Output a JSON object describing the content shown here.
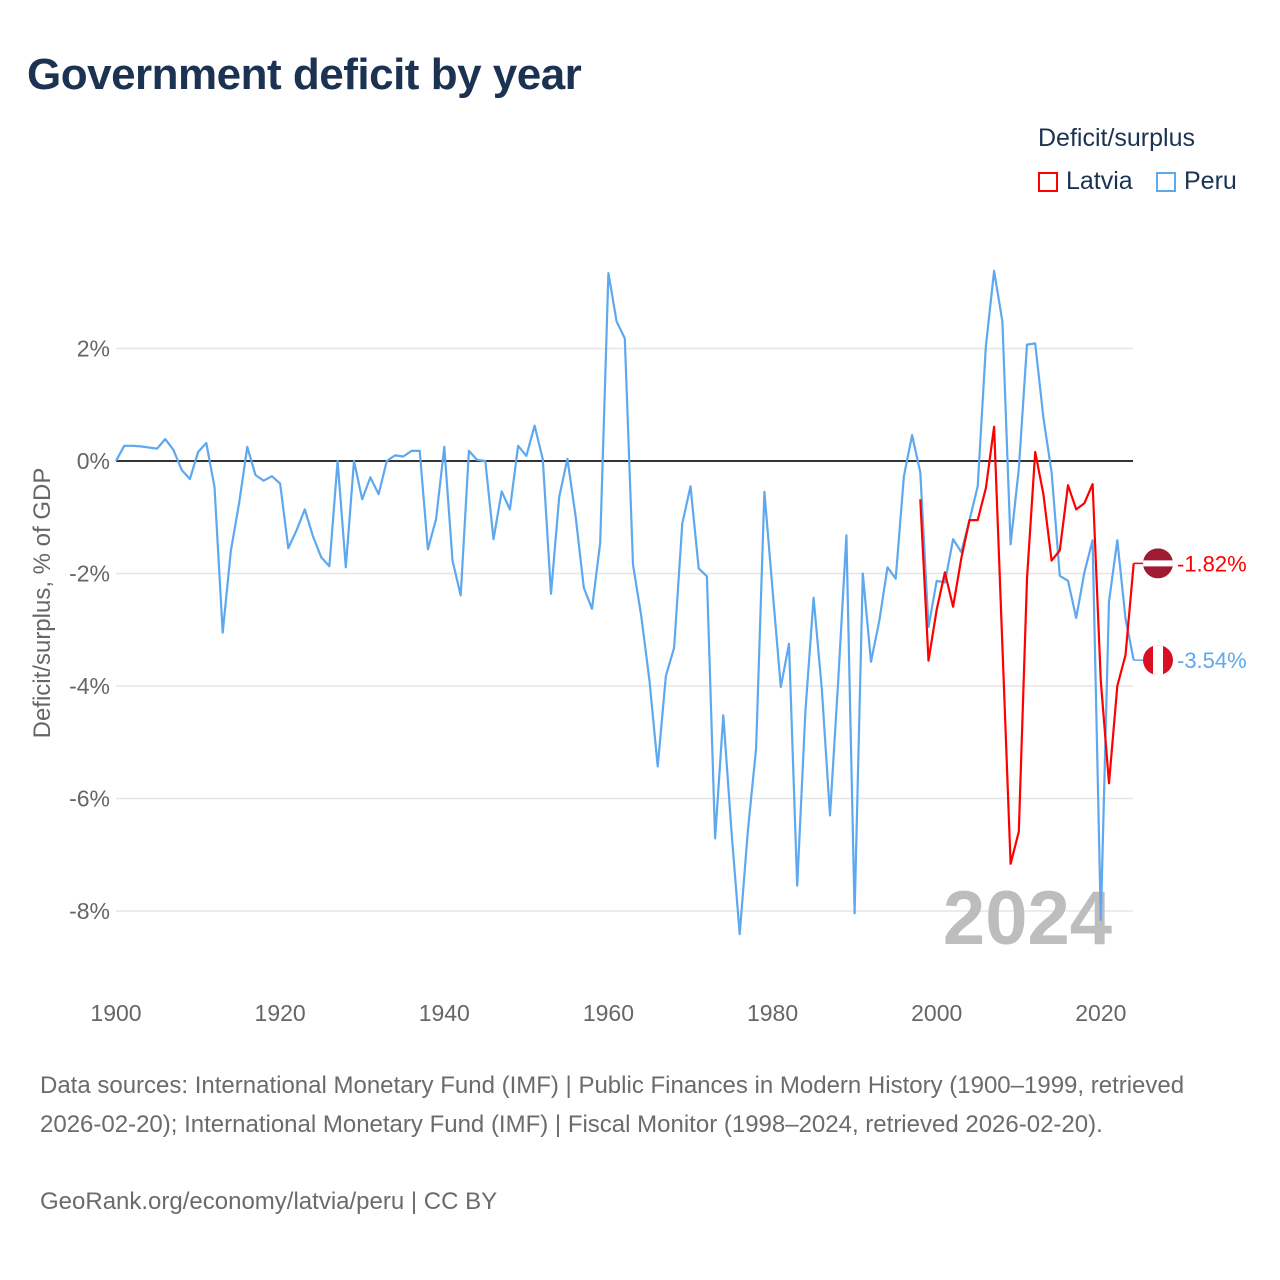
{
  "title": "Government deficit by year",
  "legend": {
    "title": "Deficit/surplus",
    "items": [
      {
        "label": "Latvia",
        "color": "#ff0000"
      },
      {
        "label": "Peru",
        "color": "#5da8ef"
      }
    ]
  },
  "chart_data": {
    "type": "line",
    "title": "Government deficit by year",
    "xlabel": "",
    "ylabel": "Deficit/surplus, % of GDP",
    "xlim": [
      1900,
      2024
    ],
    "ylim": [
      -9.3,
      3.5
    ],
    "x_ticks": [
      1900,
      1920,
      1940,
      1960,
      1980,
      2000,
      2020
    ],
    "x_tick_labels": [
      "1900",
      "1920",
      "1940",
      "1960",
      "1980",
      "2000",
      "2020"
    ],
    "y_ticks": [
      2,
      0,
      -2,
      -4,
      -6,
      -8
    ],
    "y_tick_labels": [
      "2%",
      "0%",
      "-2%",
      "-4%",
      "-6%",
      "-8%"
    ],
    "grid": true,
    "legend_position": "top-right",
    "year_watermark": "2024",
    "series": [
      {
        "name": "Peru",
        "color": "#5da8ef",
        "start_year": 1900,
        "end_label": "-3.54%",
        "values": [
          0,
          0.27,
          0.27,
          0.26,
          0.24,
          0.22,
          0.39,
          0.2,
          -0.16,
          -0.32,
          0.16,
          0.32,
          -0.46,
          -3.05,
          -1.59,
          -0.75,
          0.25,
          -0.25,
          -0.35,
          -0.27,
          -0.4,
          -1.55,
          -1.23,
          -0.86,
          -1.34,
          -1.71,
          -1.87,
          0,
          -1.89,
          0,
          -0.68,
          -0.29,
          -0.59,
          0,
          0.1,
          0.08,
          0.18,
          0.18,
          -1.57,
          -1.03,
          0.25,
          -1.77,
          -2.39,
          0.18,
          0.02,
          0,
          -1.39,
          -0.54,
          -0.86,
          0.27,
          0.09,
          0.63,
          0.03,
          -2.36,
          -0.64,
          0.04,
          -0.98,
          -2.25,
          -2.63,
          -1.45,
          3.34,
          2.48,
          2.18,
          -1.84,
          -2.75,
          -3.91,
          -5.43,
          -3.82,
          -3.32,
          -1.11,
          -0.45,
          -1.91,
          -2.05,
          -6.71,
          -4.52,
          -6.59,
          -8.41,
          -6.57,
          -5.11,
          -0.55,
          -2.3,
          -4.02,
          -3.25,
          -7.55,
          -4.45,
          -2.43,
          -4.05,
          -6.3,
          -3.91,
          -1.32,
          -8.04,
          -2.0,
          -3.57,
          -2.84,
          -1.89,
          -2.09,
          -0.27,
          0.46,
          -0.2,
          -2.95,
          -2.13,
          -2.16,
          -1.39,
          -1.62,
          -1.05,
          -0.45,
          2.05,
          3.38,
          2.48,
          -1.48,
          -0.14,
          2.07,
          2.09,
          0.77,
          -0.2,
          -2.04,
          -2.13,
          -2.79,
          -1.98,
          -1.41,
          -8.16,
          -2.5,
          -1.41,
          -2.8,
          -3.54
        ]
      },
      {
        "name": "Latvia",
        "color": "#ff0000",
        "start_year": 1998,
        "end_label": "-1.82%",
        "values": [
          -0.68,
          -3.55,
          -2.64,
          -1.98,
          -2.59,
          -1.73,
          -1.05,
          -1.05,
          -0.48,
          0.61,
          -3.29,
          -7.16,
          -6.59,
          -2.09,
          0.16,
          -0.59,
          -1.77,
          -1.59,
          -0.43,
          -0.86,
          -0.75,
          -0.41,
          -3.91,
          -5.73,
          -4.0,
          -3.45,
          -1.82
        ]
      }
    ]
  },
  "footer": {
    "sources": "Data sources: International Monetary Fund (IMF) | Public Finances in Modern History (1900–1999, retrieved 2026-02-20); International Monetary Fund (IMF) | Fiscal Monitor (1998–2024, retrieved 2026-02-20).",
    "credit": "GeoRank.org/economy/latvia/peru | CC BY"
  }
}
